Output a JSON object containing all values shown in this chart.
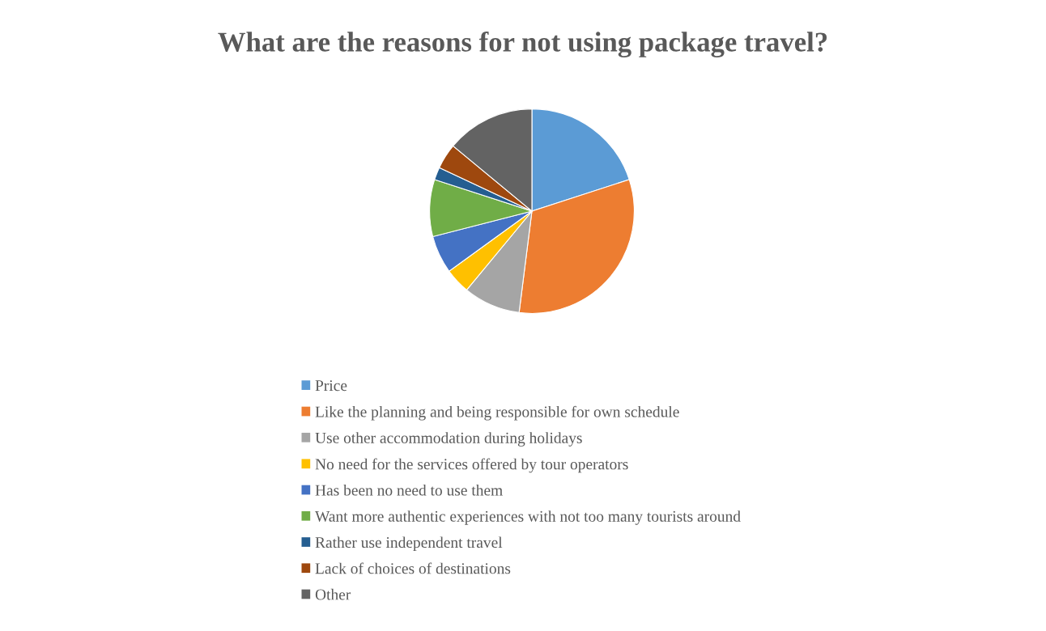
{
  "chart_data": {
    "type": "pie",
    "title": "What are the reasons for not using package travel?",
    "categories": [
      "Price",
      "Like the planning and being responsible for own schedule",
      "Use other accommodation during holidays",
      "No need for the services offered by tour operators",
      "Has been no need to use them",
      "Want more authentic experiences with not too many tourists around",
      "Rather use independent travel",
      "Lack of choices of destinations",
      "Other"
    ],
    "values": [
      20,
      32,
      9,
      4,
      6,
      9,
      2,
      4,
      14
    ],
    "colors": [
      "#5b9bd5",
      "#ed7d31",
      "#a5a5a5",
      "#ffc000",
      "#4472c4",
      "#70ad47",
      "#255e91",
      "#9e480e",
      "#636363"
    ],
    "legend": "bottom"
  }
}
